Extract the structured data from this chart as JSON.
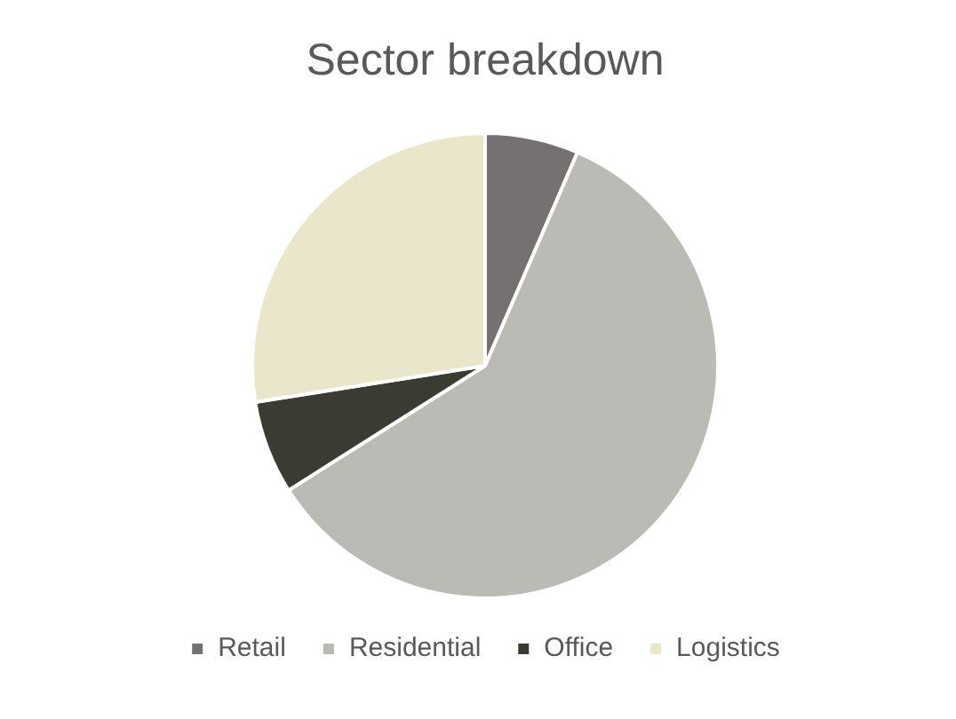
{
  "chart_data": {
    "type": "pie",
    "title": "Sector breakdown",
    "categories": [
      "Retail",
      "Residential",
      "Office",
      "Logistics"
    ],
    "values": [
      6.5,
      59.5,
      6.5,
      27.5
    ],
    "colors": [
      "#767171",
      "#bcbab4",
      "#3b3b34",
      "#e9e6cb"
    ],
    "legend": "bottom"
  }
}
